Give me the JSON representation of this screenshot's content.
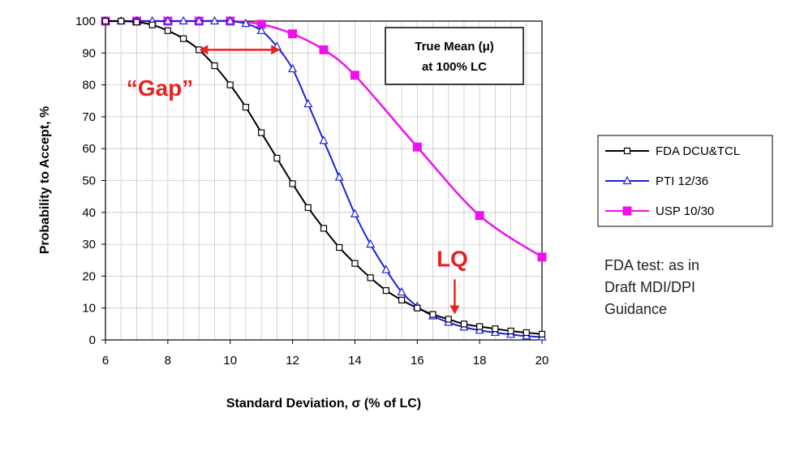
{
  "chart_data": {
    "type": "line",
    "xlabel": "Standard Deviation, σ (% of LC)",
    "ylabel": "Probability to Accept, %",
    "xlim": [
      6,
      20
    ],
    "ylim": [
      0,
      100
    ],
    "x_ticks": [
      "6",
      "8",
      "10",
      "12",
      "14",
      "16",
      "18",
      "20"
    ],
    "y_ticks": [
      "0",
      "10",
      "20",
      "30",
      "40",
      "50",
      "60",
      "70",
      "80",
      "90",
      "100"
    ],
    "grid": true,
    "legend_position": "right",
    "series": [
      {
        "name": "FDA DCU&TCL",
        "color": "#000000",
        "marker": "open-square",
        "x": [
          6,
          6.5,
          7,
          7.5,
          8,
          8.5,
          9,
          9.5,
          10,
          10.5,
          11,
          11.5,
          12,
          12.5,
          13,
          13.5,
          14,
          14.5,
          15,
          15.5,
          16,
          16.5,
          17,
          17.5,
          18,
          18.5,
          19,
          19.5,
          20
        ],
        "y": [
          100,
          100,
          99.7,
          98.8,
          97,
          94.5,
          91,
          86,
          80,
          73,
          65,
          57,
          49,
          41.5,
          35,
          29,
          24,
          19.5,
          15.5,
          12.5,
          10,
          8,
          6.5,
          5,
          4.2,
          3.5,
          2.8,
          2.3,
          1.8
        ]
      },
      {
        "name": "PTI 12/36",
        "color": "#1a22e0",
        "marker": "open-triangle",
        "x": [
          6,
          6.5,
          7,
          7.5,
          8,
          8.5,
          9,
          9.5,
          10,
          10.5,
          11,
          11.5,
          12,
          12.5,
          13,
          13.5,
          14,
          14.5,
          15,
          15.5,
          16,
          16.5,
          17,
          17.5,
          18,
          18.5,
          19,
          19.5,
          20
        ],
        "y": [
          100,
          100,
          100,
          100,
          100,
          100,
          100,
          100,
          100,
          99.2,
          97,
          92,
          85,
          74,
          62.5,
          51,
          39.5,
          30,
          22,
          15,
          10.5,
          7.5,
          5.5,
          4,
          3,
          2.3,
          1.7,
          1.2,
          0.9
        ]
      },
      {
        "name": "USP 10/30",
        "color": "#ee11ee",
        "marker": "filled-square",
        "x": [
          6,
          7,
          8,
          9,
          10,
          11,
          12,
          13,
          14,
          16,
          18,
          20
        ],
        "y": [
          100,
          100,
          100,
          100,
          100,
          99,
          96,
          91,
          83,
          60.5,
          39,
          26
        ]
      }
    ],
    "annotations": {
      "gap_label": "“Gap”",
      "lq_label": "LQ",
      "box_line1": "True Mean (μ)",
      "box_line2": "at 100% LC",
      "gap_arrow_x": [
        9,
        11.6
      ],
      "gap_arrow_y": 91,
      "lq_arrow_x": 17.2,
      "lq_arrow_y": [
        19,
        8
      ],
      "note_lines": [
        "FDA test: as in",
        "Draft MDI/DPI",
        "Guidance"
      ]
    },
    "colors": {
      "annotation_red": "#e8231f",
      "grid": "#c8c8c8"
    }
  }
}
